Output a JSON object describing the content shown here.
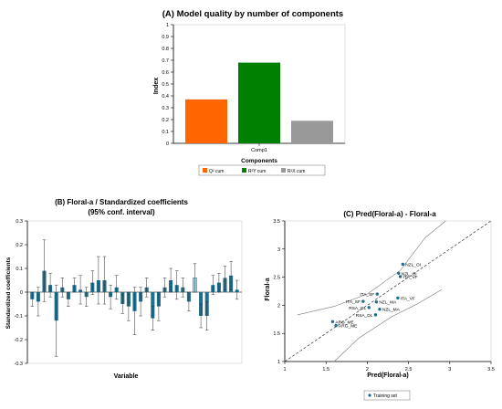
{
  "chart_data": [
    {
      "type": "bar",
      "title": "(A)  Model quality by number of components",
      "xlabel": "Components",
      "ylabel": "Index",
      "categories": [
        "Comp1"
      ],
      "ylim": [
        0,
        1
      ],
      "yticks": [
        "0",
        "0.1",
        "0.2",
        "0.3",
        "0.4",
        "0.5",
        "0.6",
        "0.7",
        "0.8",
        "0.9",
        "1"
      ],
      "series": [
        {
          "name": "Q² cum",
          "values": [
            0.37
          ],
          "color": "#ff6600"
        },
        {
          "name": "R²Y cum",
          "values": [
            0.68
          ],
          "color": "#008000"
        },
        {
          "name": "R²X cum",
          "values": [
            0.19
          ],
          "color": "#999999"
        }
      ],
      "legend": "bottom"
    },
    {
      "type": "bar",
      "title": [
        "(B)  Floral-a / Standardized coefficients",
        "(95% conf. interval)"
      ],
      "xlabel": "Variable",
      "ylabel": "Standardized coefficients",
      "ylim": [
        -0.3,
        0.3
      ],
      "yticks": [
        "-0.3",
        "-0.2",
        "-0.1",
        "0",
        "0.1",
        "0.2",
        "0.3"
      ],
      "bar_color": "#1e6e8c",
      "values": [
        -0.03,
        -0.04,
        0.09,
        0.03,
        -0.12,
        0.02,
        -0.03,
        0.03,
        0.01,
        -0.02,
        0.04,
        0.05,
        0.05,
        -0.02,
        0.02,
        -0.05,
        -0.06,
        -0.08,
        -0.04,
        0.02,
        -0.11,
        -0.06,
        0.02,
        0.05,
        0.03,
        0.02,
        -0.04,
        0.06,
        -0.1,
        -0.1,
        0.03,
        0.04,
        0.06,
        0.07,
        0.01
      ],
      "errors": [
        0.03,
        0.06,
        0.13,
        0.05,
        0.15,
        0.04,
        0.03,
        0.03,
        0.06,
        0.04,
        0.05,
        0.1,
        0.1,
        0.05,
        0.05,
        0.04,
        0.06,
        0.1,
        0.06,
        0.04,
        0.05,
        0.06,
        0.04,
        0.05,
        0.06,
        0.04,
        0.04,
        0.06,
        0.05,
        0.06,
        0.04,
        0.04,
        0.05,
        0.06,
        0.04
      ],
      "highlight_index": 27
    },
    {
      "type": "scatter",
      "title": "(C)  Pred(Floral-a) - Floral-a",
      "xlabel": "Pred(Floral-a)",
      "ylabel": "Floral-a",
      "xlim": [
        1,
        3.5
      ],
      "ylim": [
        1,
        3.5
      ],
      "xticks": [
        "1",
        "1.5",
        "2",
        "2.5",
        "3",
        "3.5"
      ],
      "yticks": [
        "1",
        "1.5",
        "2",
        "2.5",
        "3",
        "3.5"
      ],
      "points": [
        {
          "label": "NZL_OI",
          "x": 2.43,
          "y": 2.73
        },
        {
          "label": "NZL_OI",
          "x": 2.38,
          "y": 2.57
        },
        {
          "label": "ITA_VF",
          "x": 2.4,
          "y": 2.51
        },
        {
          "label": "ITA_SF",
          "x": 2.12,
          "y": 2.2
        },
        {
          "label": "ITA_VF",
          "x": 2.37,
          "y": 2.13
        },
        {
          "label": "ITA_SF",
          "x": 1.95,
          "y": 2.07
        },
        {
          "label": "NZL_MA",
          "x": 2.11,
          "y": 2.06
        },
        {
          "label": "NZL_MA",
          "x": 2.15,
          "y": 1.93
        },
        {
          "label": "RSA_OL",
          "x": 2.02,
          "y": 1.96
        },
        {
          "label": "RSA_DL",
          "x": 2.1,
          "y": 1.83
        },
        {
          "label": "ARG_ME",
          "x": 1.58,
          "y": 1.71
        },
        {
          "label": "ARG_ME",
          "x": 1.62,
          "y": 1.64
        }
      ],
      "legend": [
        "Training set"
      ]
    }
  ]
}
